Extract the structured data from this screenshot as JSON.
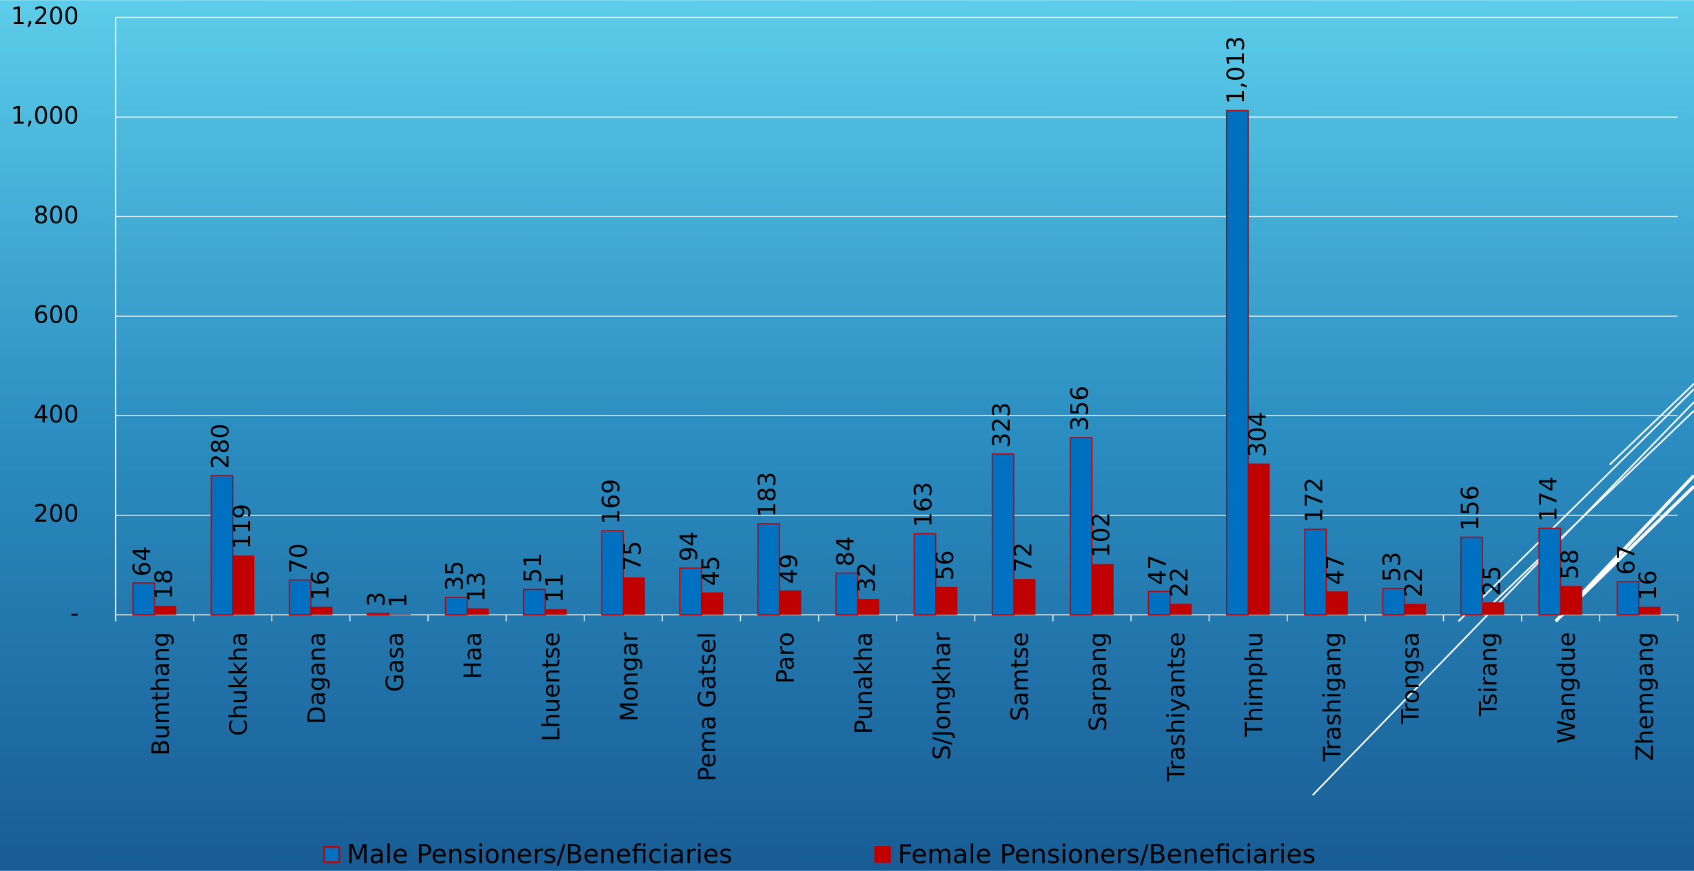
{
  "chart_data": {
    "type": "bar",
    "categories": [
      "Bumthang",
      "Chukkha",
      "Dagana",
      "Gasa",
      "Haa",
      "Lhuentse",
      "Mongar",
      "Pema Gatsel",
      "Paro",
      "Punakha",
      "S/Jongkhar",
      "Samtse",
      "Sarpang",
      "Trashiyantse",
      "Thimphu",
      "Trashigang",
      "Trongsa",
      "Tsirang",
      "Wangdue",
      "Zhemgang"
    ],
    "series": [
      {
        "name": "Male Pensioners/Beneficiaries",
        "color": "#0070c0",
        "edge": "#c00000",
        "values": [
          64,
          280,
          70,
          3,
          35,
          51,
          169,
          94,
          183,
          84,
          163,
          323,
          356,
          47,
          1013,
          172,
          53,
          156,
          174,
          67
        ],
        "value_labels": [
          "64",
          "280",
          "70",
          "3",
          "35",
          "51",
          "169",
          "94",
          "183",
          "84",
          "163",
          "323",
          "356",
          "47",
          "1,013",
          "172",
          "53",
          "156",
          "174",
          "67"
        ]
      },
      {
        "name": "Female Pensioners/Beneficiaries",
        "color": "#c00000",
        "values": [
          18,
          119,
          16,
          1,
          13,
          11,
          75,
          45,
          49,
          32,
          56,
          72,
          102,
          22,
          304,
          47,
          22,
          25,
          58,
          16
        ]
      }
    ],
    "ylim": [
      0,
      1200
    ],
    "yticks": [
      {
        "value": 0,
        "label": "-"
      },
      200,
      400,
      600,
      800,
      {
        "value": 1000,
        "label": "1,000"
      },
      {
        "value": 1200,
        "label": "1,200"
      }
    ],
    "grid": true,
    "legend": "bottom"
  }
}
